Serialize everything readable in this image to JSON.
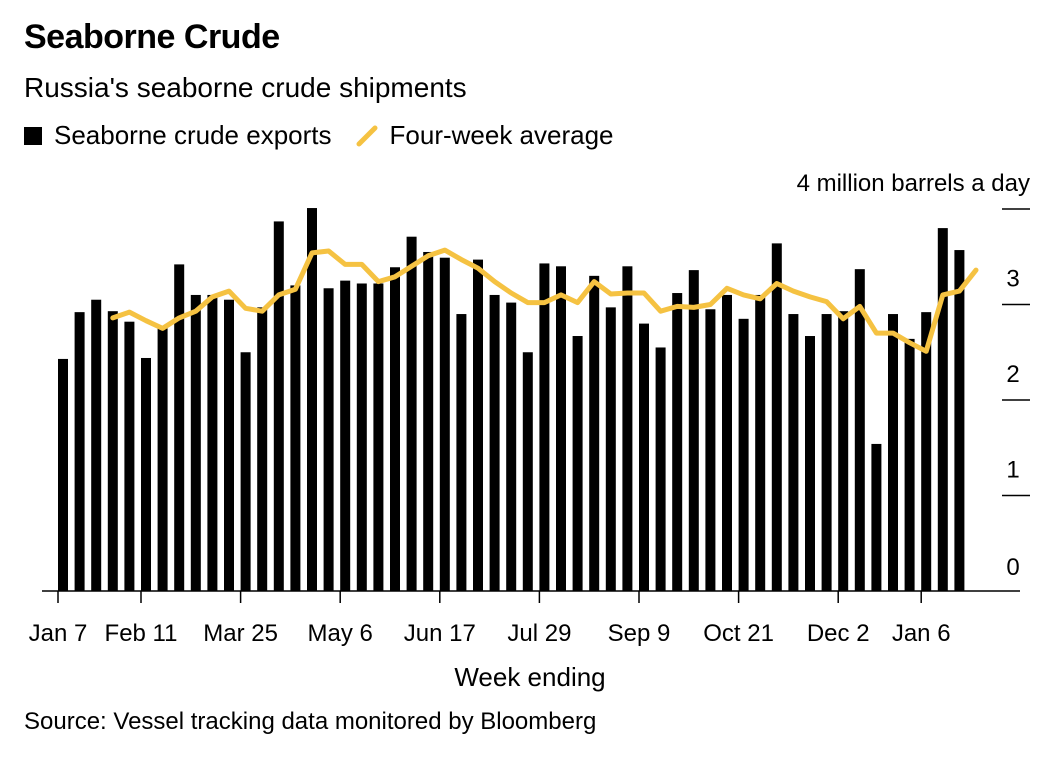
{
  "title": "Seaborne Crude",
  "subtitle": "Russia's seaborne crude shipments",
  "legend": {
    "bars": "Seaborne crude exports",
    "line": "Four-week average"
  },
  "colors": {
    "bars": "#000000",
    "line": "#f5c242",
    "grid": "#000000"
  },
  "source": "Source: Vessel tracking data monitored by Bloomberg",
  "chart_data": {
    "type": "bar",
    "xlabel": "Week ending",
    "ylabel": "4 million barrels a day",
    "ylim": [
      0,
      4
    ],
    "yticks": [
      {
        "value": 0,
        "label": "0"
      },
      {
        "value": 1,
        "label": "1"
      },
      {
        "value": 2,
        "label": "2"
      },
      {
        "value": 3,
        "label": "3"
      },
      {
        "value": 4,
        "label": "4 million barrels a day"
      }
    ],
    "xticks": [
      {
        "index": 0,
        "label": "Jan 7"
      },
      {
        "index": 5,
        "label": "Feb 11"
      },
      {
        "index": 11,
        "label": "Mar 25"
      },
      {
        "index": 17,
        "label": "May 6"
      },
      {
        "index": 23,
        "label": "Jun 17"
      },
      {
        "index": 29,
        "label": "Jul 29"
      },
      {
        "index": 35,
        "label": "Sep 9"
      },
      {
        "index": 41,
        "label": "Oct 21"
      },
      {
        "index": 47,
        "label": "Dec 2"
      },
      {
        "index": 52,
        "label": "Jan 6"
      }
    ],
    "series": [
      {
        "name": "Seaborne crude exports",
        "kind": "bar",
        "values": [
          2.43,
          2.92,
          3.05,
          2.93,
          2.82,
          2.44,
          2.75,
          3.42,
          3.1,
          3.1,
          3.05,
          2.5,
          2.97,
          3.87,
          3.2,
          4.01,
          3.17,
          3.25,
          3.22,
          3.22,
          3.39,
          3.71,
          3.55,
          3.49,
          2.9,
          3.47,
          3.1,
          3.02,
          2.5,
          3.43,
          3.4,
          2.67,
          3.3,
          2.97,
          3.4,
          2.8,
          2.55,
          3.12,
          3.36,
          2.95,
          3.1,
          2.85,
          3.1,
          3.64,
          2.9,
          2.67,
          2.9,
          2.93,
          3.37,
          1.54,
          2.9,
          2.64,
          2.92,
          3.8,
          3.57
        ]
      },
      {
        "name": "Four-week average",
        "kind": "line",
        "start_index": 3,
        "values": [
          2.86,
          2.92,
          2.83,
          2.75,
          2.86,
          2.93,
          3.08,
          3.14,
          2.96,
          2.93,
          3.1,
          3.16,
          3.54,
          3.56,
          3.42,
          3.42,
          3.24,
          3.29,
          3.4,
          3.51,
          3.57,
          3.47,
          3.38,
          3.24,
          3.12,
          3.02,
          3.02,
          3.1,
          3.02,
          3.24,
          3.11,
          3.12,
          3.12,
          2.93,
          2.98,
          2.97,
          3.0,
          3.17,
          3.1,
          3.06,
          3.22,
          3.14,
          3.08,
          3.03,
          2.85,
          2.98,
          2.7,
          2.7,
          2.6,
          2.51,
          3.1,
          3.14,
          3.36
        ]
      }
    ],
    "grid": false
  }
}
